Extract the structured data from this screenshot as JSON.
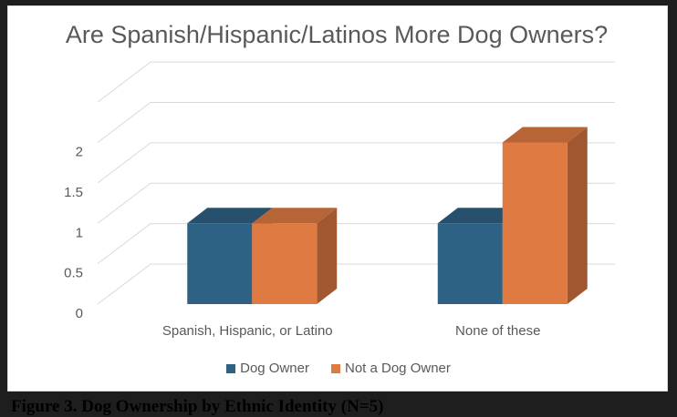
{
  "caption": "Figure 3. Dog Ownership by Ethnic Identity (N=5)",
  "chart_data": {
    "type": "bar",
    "title": "Are Spanish/Hispanic/Latinos More Dog Owners?",
    "categories": [
      "Spanish, Hispanic, or Latino",
      "None of these"
    ],
    "series": [
      {
        "name": "Dog Owner",
        "values": [
          1,
          1
        ],
        "color": "#2E6284"
      },
      {
        "name": "Not a Dog Owner",
        "values": [
          1,
          2
        ],
        "color": "#DF7A42"
      }
    ],
    "yticks": [
      "0",
      "0.5",
      "1",
      "1.5",
      "2"
    ],
    "ylim": [
      0,
      2.5
    ],
    "grid": true,
    "legend": "bottom",
    "style": "3d"
  }
}
